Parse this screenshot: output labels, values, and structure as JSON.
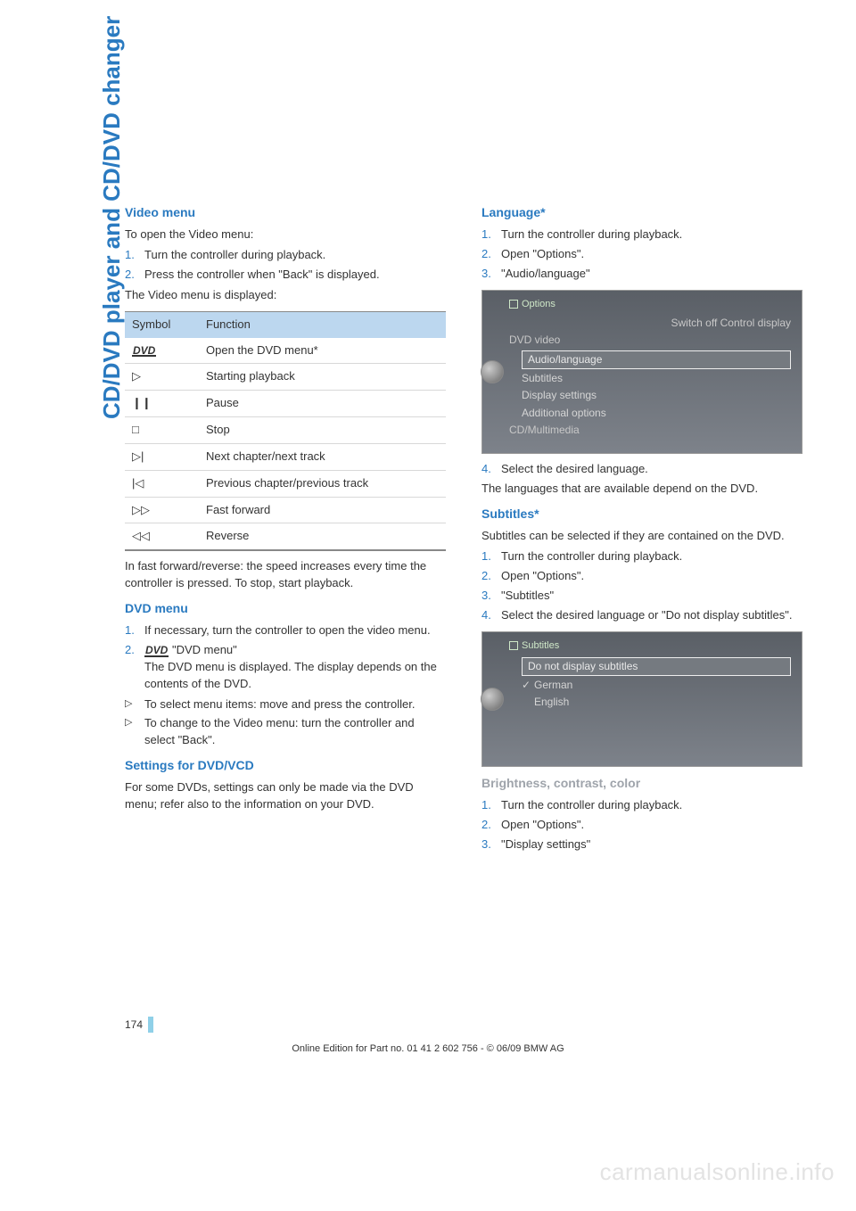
{
  "side_title": "CD/DVD player and CD/DVD changer",
  "page_number": "174",
  "footer": "Online Edition for Part no. 01 41 2 602 756 - © 06/09 BMW AG",
  "watermark": "carmanualsonline.info",
  "left": {
    "video_menu": {
      "heading": "Video menu",
      "intro": "To open the Video menu:",
      "steps": [
        "Turn the controller during playback.",
        "Press the controller when \"Back\" is displayed."
      ],
      "after": "The Video menu is displayed:"
    },
    "symbol_table": {
      "col_symbol": "Symbol",
      "col_function": "Function",
      "rows": [
        {
          "sym": "DVD",
          "fn": "Open the DVD menu*"
        },
        {
          "sym": "▷",
          "fn": "Starting playback"
        },
        {
          "sym": "❙❙",
          "fn": "Pause"
        },
        {
          "sym": "□",
          "fn": "Stop"
        },
        {
          "sym": "▷|",
          "fn": "Next chapter/next track"
        },
        {
          "sym": "|◁",
          "fn": "Previous chapter/previous track"
        },
        {
          "sym": "▷▷",
          "fn": "Fast forward"
        },
        {
          "sym": "◁◁",
          "fn": "Reverse"
        }
      ],
      "note": "In fast forward/reverse: the speed increases every time the controller is pressed. To stop, start playback."
    },
    "dvd_menu": {
      "heading": "DVD menu",
      "steps": [
        "If necessary, turn the controller to open the video menu.",
        "\"DVD menu\"\nThe DVD menu is displayed. The display depends on the contents of the DVD."
      ],
      "bullets": [
        "To select menu items: move and press the controller.",
        "To change to the Video menu: turn the controller and select \"Back\"."
      ]
    },
    "settings": {
      "heading": "Settings for DVD/VCD",
      "body": "For some DVDs, settings can only be made via the DVD menu; refer also to the information on your DVD."
    }
  },
  "right": {
    "language": {
      "heading": "Language*",
      "steps": [
        "Turn the controller during playback.",
        "Open \"Options\".",
        "\"Audio/language\""
      ],
      "screenshot": {
        "header": "Options",
        "line_top": "Switch off Control display",
        "group1": "DVD video",
        "selected": "Audio/language",
        "items": [
          "Subtitles",
          "Display settings",
          "Additional options"
        ],
        "group2": "CD/Multimedia"
      },
      "step4": "Select the desired language.",
      "after": "The languages that are available depend on the DVD."
    },
    "subtitles": {
      "heading": "Subtitles*",
      "intro": "Subtitles can be selected if they are contained on the DVD.",
      "steps": [
        "Turn the controller during playback.",
        "Open \"Options\".",
        "\"Subtitles\"",
        "Select the desired language or \"Do not display subtitles\"."
      ],
      "screenshot": {
        "header": "Subtitles",
        "selected": "Do not display subtitles",
        "items": [
          "German",
          "English"
        ],
        "checked_index": 0
      }
    },
    "brightness": {
      "heading": "Brightness, contrast, color",
      "steps": [
        "Turn the controller during playback.",
        "Open \"Options\".",
        "\"Display settings\""
      ]
    }
  }
}
